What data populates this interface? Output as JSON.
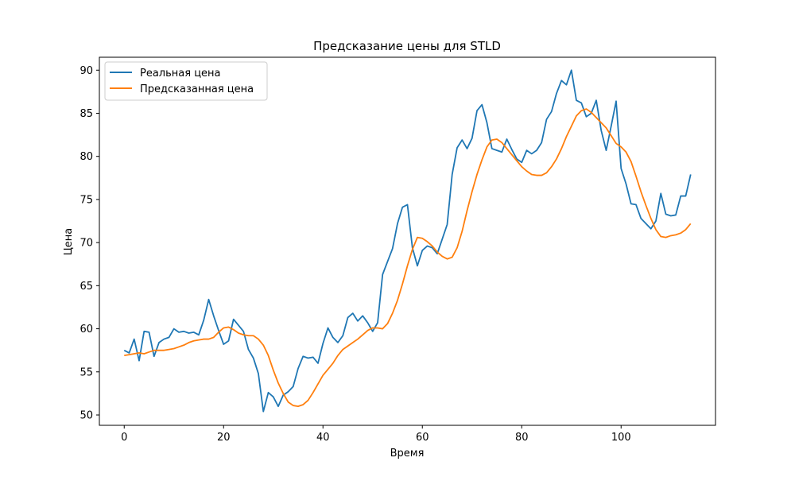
{
  "chart_data": {
    "type": "line",
    "title": "Предсказание цены для STLD",
    "xlabel": "Время",
    "ylabel": "Цена",
    "xlim": [
      -5,
      119
    ],
    "ylim": [
      48.8,
      91.5
    ],
    "xticks": [
      0,
      20,
      40,
      60,
      80,
      100
    ],
    "yticks": [
      50,
      55,
      60,
      65,
      70,
      75,
      80,
      85,
      90
    ],
    "legend_position": "top-left",
    "grid": false,
    "series": [
      {
        "name": "Реальная цена",
        "color": "#1f77b4",
        "values": [
          57.5,
          57.2,
          58.8,
          56.3,
          59.7,
          59.6,
          56.8,
          58.4,
          58.8,
          59.0,
          60.0,
          59.6,
          59.7,
          59.5,
          59.6,
          59.3,
          61.0,
          63.4,
          61.5,
          59.8,
          58.2,
          58.6,
          61.1,
          60.4,
          59.7,
          57.6,
          56.6,
          54.8,
          50.4,
          52.6,
          52.1,
          51.0,
          52.3,
          52.7,
          53.3,
          55.4,
          56.8,
          56.6,
          56.7,
          56.0,
          58.3,
          60.1,
          59.0,
          58.4,
          59.2,
          61.3,
          61.8,
          60.9,
          61.5,
          60.7,
          59.7,
          60.7,
          66.3,
          67.8,
          69.3,
          72.2,
          74.1,
          74.4,
          69.4,
          67.3,
          69.1,
          69.6,
          69.4,
          68.7,
          70.4,
          72.1,
          77.9,
          81.0,
          81.9,
          80.9,
          82.1,
          85.3,
          86.0,
          83.9,
          80.9,
          80.7,
          80.5,
          82.0,
          80.8,
          79.7,
          79.3,
          80.7,
          80.3,
          80.7,
          81.6,
          84.3,
          85.2,
          87.3,
          88.8,
          88.3,
          90.0,
          86.5,
          86.2,
          84.6,
          85.0,
          86.5,
          83.0,
          80.7,
          83.5,
          86.4,
          78.6,
          76.8,
          74.5,
          74.4,
          72.8,
          72.2,
          71.6,
          72.5,
          75.7,
          73.3,
          73.1,
          73.2,
          75.4,
          75.4,
          77.9
        ]
      },
      {
        "name": "Предсказанная цена",
        "color": "#ff7f0e",
        "values": [
          56.9,
          57.0,
          57.1,
          57.2,
          57.1,
          57.3,
          57.5,
          57.5,
          57.5,
          57.6,
          57.7,
          57.9,
          58.1,
          58.4,
          58.6,
          58.7,
          58.8,
          58.8,
          59.0,
          59.6,
          60.1,
          60.2,
          59.9,
          59.5,
          59.3,
          59.2,
          59.2,
          58.8,
          58.1,
          56.9,
          55.2,
          53.7,
          52.5,
          51.5,
          51.1,
          51.0,
          51.2,
          51.7,
          52.6,
          53.6,
          54.6,
          55.3,
          56.0,
          56.9,
          57.6,
          58.0,
          58.4,
          58.8,
          59.3,
          59.8,
          60.1,
          60.1,
          60.0,
          60.6,
          61.8,
          63.3,
          65.2,
          67.3,
          69.2,
          70.6,
          70.5,
          70.1,
          69.6,
          68.9,
          68.4,
          68.1,
          68.3,
          69.4,
          71.3,
          73.7,
          75.9,
          77.9,
          79.6,
          81.1,
          81.9,
          82.0,
          81.6,
          80.9,
          80.2,
          79.5,
          78.8,
          78.3,
          77.9,
          77.8,
          77.8,
          78.1,
          78.8,
          79.7,
          80.9,
          82.3,
          83.5,
          84.7,
          85.3,
          85.5,
          85.1,
          84.5,
          83.9,
          83.3,
          82.4,
          81.5,
          81.1,
          80.5,
          79.4,
          77.7,
          75.9,
          74.3,
          72.8,
          71.5,
          70.7,
          70.6,
          70.8,
          70.9,
          71.1,
          71.5,
          72.2
        ]
      }
    ]
  }
}
